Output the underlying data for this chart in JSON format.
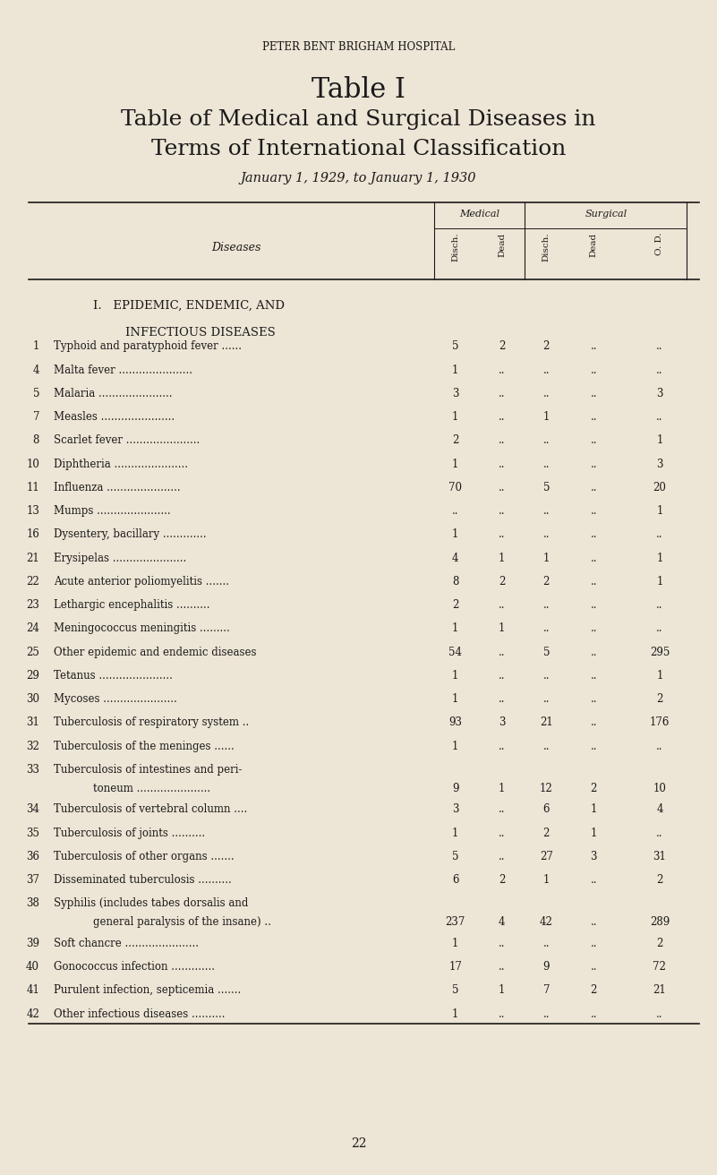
{
  "bg_color": "#ede5d5",
  "text_color": "#1a1a1a",
  "institution": "PETER BENT BRIGHAM HOSPITAL",
  "title_line1": "Table I",
  "title_line2": "Table of Medical and Surgical Diseases in",
  "title_line3": "Terms of International Classification",
  "subtitle": "January 1, 1929, to January 1, 1930",
  "col_header_medical": "Medical",
  "col_header_surgical": "Surgical",
  "col_headers_rot": [
    "Disch.",
    "Dead",
    "Disch.",
    "Dead",
    "O. D."
  ],
  "diseases_label": "Diseases",
  "rows": [
    {
      "num": "1",
      "name": "Typhoid and paratyphoid fever ......",
      "md": "5",
      "mdd": "2",
      "sd": "2",
      "sdd": "..",
      "od": "..",
      "two_line": false
    },
    {
      "num": "4",
      "name": "Malta fever ......................",
      "md": "1",
      "mdd": "..",
      "sd": "..",
      "sdd": "..",
      "od": "..",
      "two_line": false
    },
    {
      "num": "5",
      "name": "Malaria ......................",
      "md": "3",
      "mdd": "..",
      "sd": "..",
      "sdd": "..",
      "od": "3",
      "two_line": false
    },
    {
      "num": "7",
      "name": "Measles ......................",
      "md": "1",
      "mdd": "..",
      "sd": "1",
      "sdd": "..",
      "od": "..",
      "two_line": false
    },
    {
      "num": "8",
      "name": "Scarlet fever ......................",
      "md": "2",
      "mdd": "..",
      "sd": "..",
      "sdd": "..",
      "od": "1",
      "two_line": false
    },
    {
      "num": "10",
      "name": "Diphtheria ......................",
      "md": "1",
      "mdd": "..",
      "sd": "..",
      "sdd": "..",
      "od": "3",
      "two_line": false
    },
    {
      "num": "11",
      "name": "Influenza ......................",
      "md": "70",
      "mdd": "..",
      "sd": "5",
      "sdd": "..",
      "od": "20",
      "two_line": false
    },
    {
      "num": "13",
      "name": "Mumps ......................",
      "md": "..",
      "mdd": "..",
      "sd": "..",
      "sdd": "..",
      "od": "1",
      "two_line": false
    },
    {
      "num": "16",
      "name": "Dysentery, bacillary .............",
      "md": "1",
      "mdd": "..",
      "sd": "..",
      "sdd": "..",
      "od": "..",
      "two_line": false
    },
    {
      "num": "21",
      "name": "Erysipelas ......................",
      "md": "4",
      "mdd": "1",
      "sd": "1",
      "sdd": "..",
      "od": "1",
      "two_line": false
    },
    {
      "num": "22",
      "name": "Acute anterior poliomyelitis .......",
      "md": "8",
      "mdd": "2",
      "sd": "2",
      "sdd": "..",
      "od": "1",
      "two_line": false
    },
    {
      "num": "23",
      "name": "Lethargic encephalitis ..........",
      "md": "2",
      "mdd": "..",
      "sd": "..",
      "sdd": "..",
      "od": "..",
      "two_line": false
    },
    {
      "num": "24",
      "name": "Meningococcus meningitis .........",
      "md": "1",
      "mdd": "1",
      "sd": "..",
      "sdd": "..",
      "od": "..",
      "two_line": false
    },
    {
      "num": "25",
      "name": "Other epidemic and endemic diseases",
      "md": "54",
      "mdd": "..",
      "sd": "5",
      "sdd": "..",
      "od": "295",
      "two_line": false
    },
    {
      "num": "29",
      "name": "Tetanus ......................",
      "md": "1",
      "mdd": "..",
      "sd": "..",
      "sdd": "..",
      "od": "1",
      "two_line": false
    },
    {
      "num": "30",
      "name": "Mycoses ......................",
      "md": "1",
      "mdd": "..",
      "sd": "..",
      "sdd": "..",
      "od": "2",
      "two_line": false
    },
    {
      "num": "31",
      "name": "Tuberculosis of respiratory system ..",
      "md": "93",
      "mdd": "3",
      "sd": "21",
      "sdd": "..",
      "od": "176",
      "two_line": false
    },
    {
      "num": "32",
      "name": "Tuberculosis of the meninges ......",
      "md": "1",
      "mdd": "..",
      "sd": "..",
      "sdd": "..",
      "od": "..",
      "two_line": false
    },
    {
      "num": "33",
      "name": "Tuberculosis of intestines and peri-",
      "name2": "toneum ......................",
      "md": "9",
      "mdd": "1",
      "sd": "12",
      "sdd": "2",
      "od": "10",
      "two_line": true
    },
    {
      "num": "34",
      "name": "Tuberculosis of vertebral column ....",
      "md": "3",
      "mdd": "..",
      "sd": "6",
      "sdd": "1",
      "od": "4",
      "two_line": false
    },
    {
      "num": "35",
      "name": "Tuberculosis of joints ..........",
      "md": "1",
      "mdd": "..",
      "sd": "2",
      "sdd": "1",
      "od": "..",
      "two_line": false
    },
    {
      "num": "36",
      "name": "Tuberculosis of other organs .......",
      "md": "5",
      "mdd": "..",
      "sd": "27",
      "sdd": "3",
      "od": "31",
      "two_line": false
    },
    {
      "num": "37",
      "name": "Disseminated tuberculosis ..........",
      "md": "6",
      "mdd": "2",
      "sd": "1",
      "sdd": "..",
      "od": "2",
      "two_line": false
    },
    {
      "num": "38",
      "name": "Syphilis (includes tabes dorsalis and",
      "name2": "general paralysis of the insane) ..",
      "md": "237",
      "mdd": "4",
      "sd": "42",
      "sdd": "..",
      "od": "289",
      "two_line": true
    },
    {
      "num": "39",
      "name": "Soft chancre ......................",
      "md": "1",
      "mdd": "..",
      "sd": "..",
      "sdd": "..",
      "od": "2",
      "two_line": false
    },
    {
      "num": "40",
      "name": "Gonococcus infection .............",
      "md": "17",
      "mdd": "..",
      "sd": "9",
      "sdd": "..",
      "od": "72",
      "two_line": false
    },
    {
      "num": "41",
      "name": "Purulent infection, septicemia .......",
      "md": "5",
      "mdd": "1",
      "sd": "7",
      "sdd": "2",
      "od": "21",
      "two_line": false
    },
    {
      "num": "42",
      "name": "Other infectious diseases ..........",
      "md": "1",
      "mdd": "..",
      "sd": "..",
      "sdd": "..",
      "od": "..",
      "two_line": false
    }
  ],
  "page_num": "22"
}
